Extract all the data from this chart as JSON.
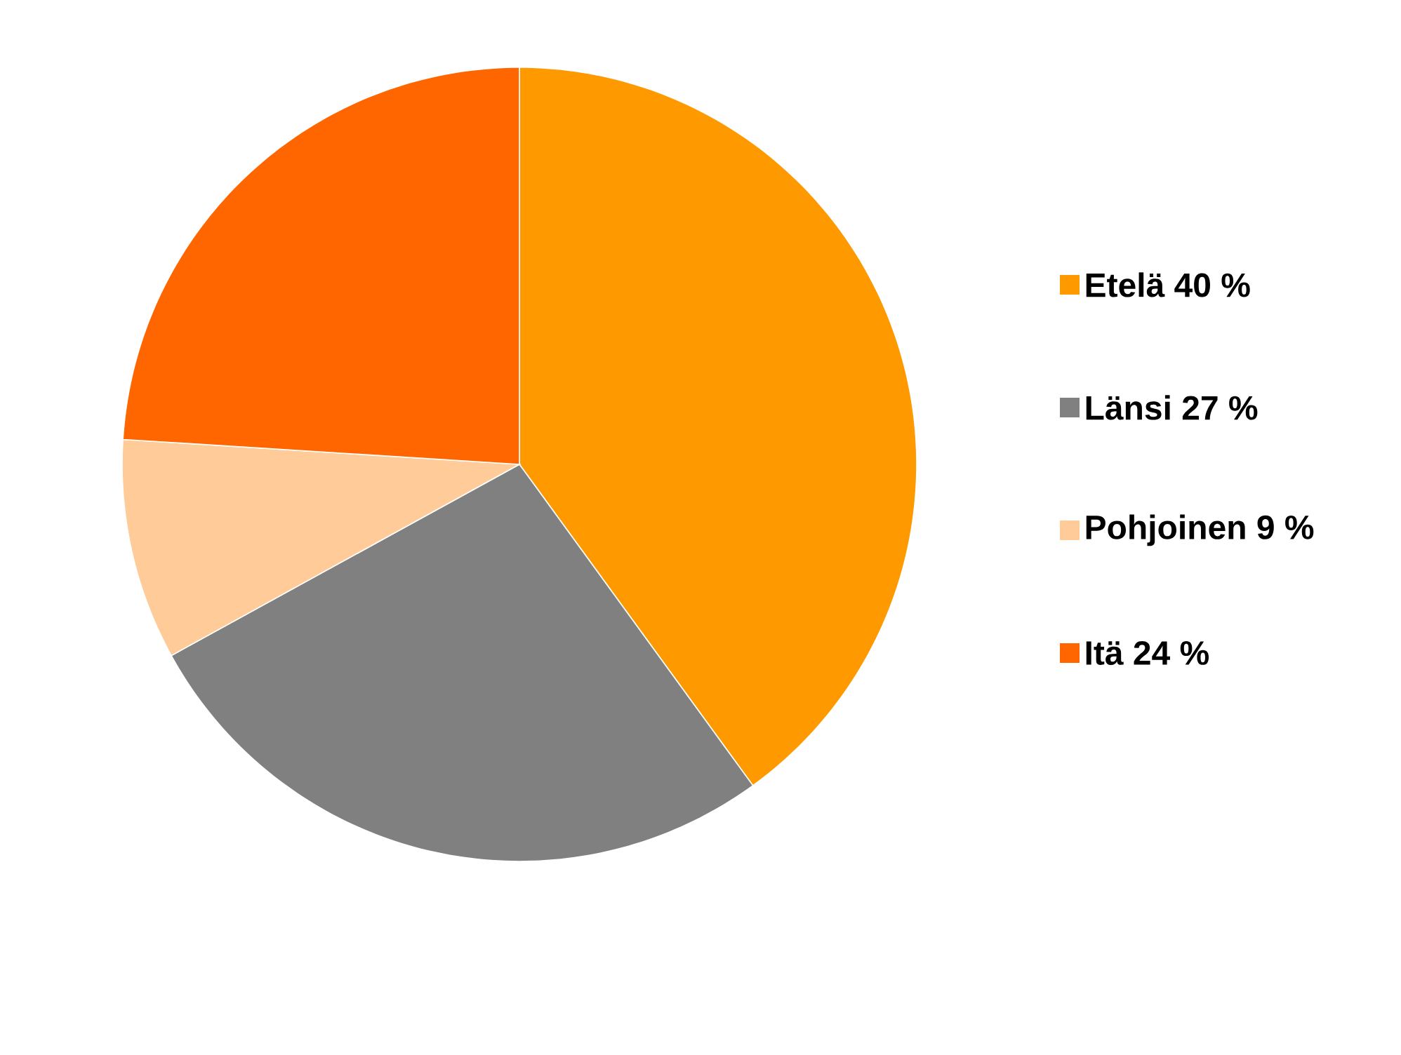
{
  "chart_data": {
    "type": "pie",
    "categories": [
      "Etelä 40 %",
      "Länsi 27 %",
      "Pohjoinen 9 %",
      "Itä 24 %"
    ],
    "values": [
      40,
      27,
      9,
      24
    ],
    "colors": [
      "#ff9900",
      "#808080",
      "#ffcc99",
      "#ff6600"
    ],
    "legend": "right"
  }
}
